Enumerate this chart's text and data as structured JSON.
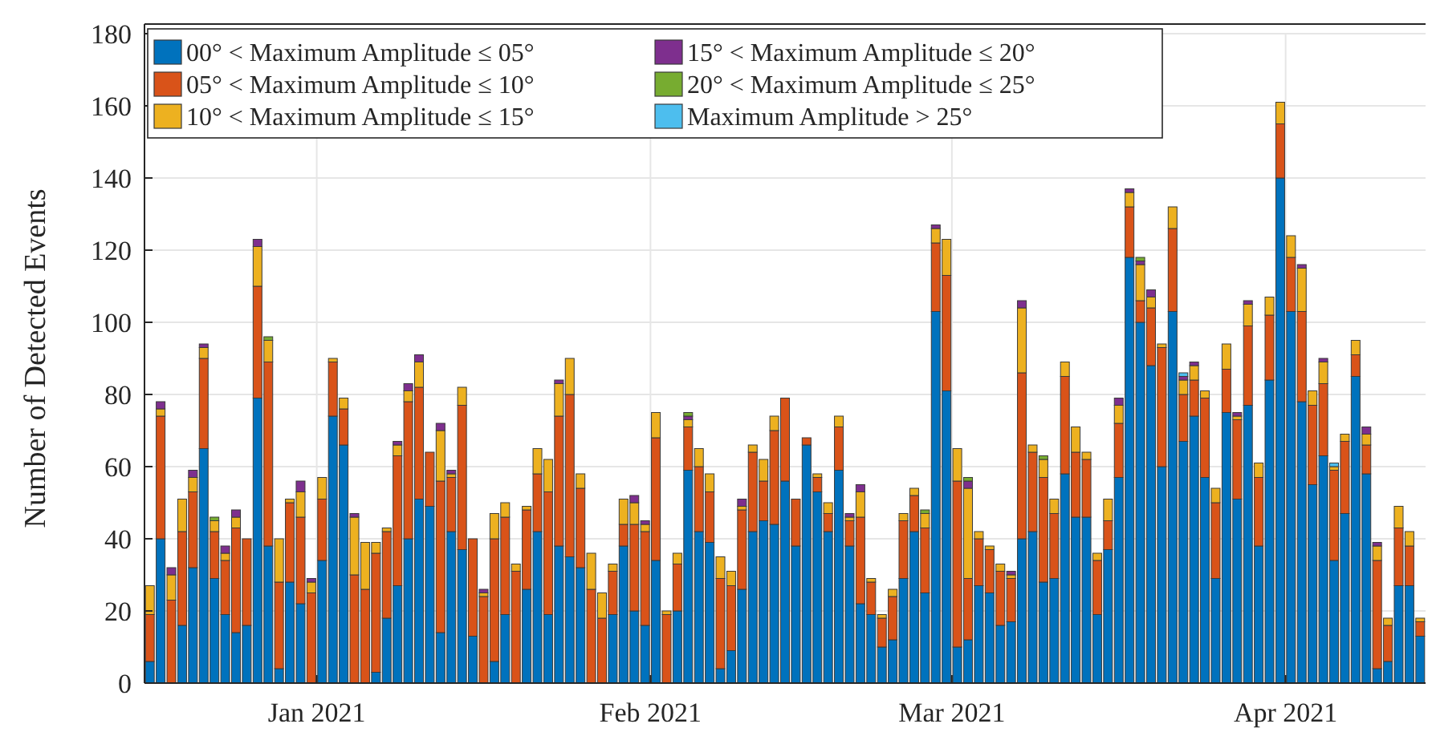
{
  "chart_data": {
    "type": "bar",
    "stacked": true,
    "ylabel": "Number of Detected Events",
    "x": [
      "2020-12-16",
      "2020-12-17",
      "2020-12-18",
      "2020-12-19",
      "2020-12-20",
      "2020-12-21",
      "2020-12-22",
      "2020-12-23",
      "2020-12-24",
      "2020-12-25",
      "2020-12-26",
      "2020-12-27",
      "2020-12-28",
      "2020-12-29",
      "2020-12-30",
      "2020-12-31",
      "2021-01-01",
      "2021-01-02",
      "2021-01-03",
      "2021-01-04",
      "2021-01-05",
      "2021-01-06",
      "2021-01-07",
      "2021-01-08",
      "2021-01-09",
      "2021-01-10",
      "2021-01-11",
      "2021-01-12",
      "2021-01-13",
      "2021-01-14",
      "2021-01-15",
      "2021-01-16",
      "2021-01-17",
      "2021-01-18",
      "2021-01-19",
      "2021-01-20",
      "2021-01-21",
      "2021-01-22",
      "2021-01-23",
      "2021-01-24",
      "2021-01-25",
      "2021-01-26",
      "2021-01-27",
      "2021-01-28",
      "2021-01-29",
      "2021-01-30",
      "2021-01-31",
      "2021-02-01",
      "2021-02-02",
      "2021-02-03",
      "2021-02-04",
      "2021-02-05",
      "2021-02-06",
      "2021-02-07",
      "2021-02-08",
      "2021-02-09",
      "2021-02-10",
      "2021-02-11",
      "2021-02-12",
      "2021-02-13",
      "2021-02-14",
      "2021-02-15",
      "2021-02-16",
      "2021-02-17",
      "2021-02-18",
      "2021-02-19",
      "2021-02-20",
      "2021-02-21",
      "2021-02-22",
      "2021-02-23",
      "2021-02-24",
      "2021-02-25",
      "2021-02-26",
      "2021-02-27",
      "2021-02-28",
      "2021-03-01",
      "2021-03-02",
      "2021-03-03",
      "2021-03-04",
      "2021-03-05",
      "2021-03-06",
      "2021-03-07",
      "2021-03-08",
      "2021-03-09",
      "2021-03-10",
      "2021-03-11",
      "2021-03-12",
      "2021-03-13",
      "2021-03-14",
      "2021-03-15",
      "2021-03-16",
      "2021-03-17",
      "2021-03-18",
      "2021-03-19",
      "2021-03-20",
      "2021-03-21",
      "2021-03-22",
      "2021-03-23",
      "2021-03-24",
      "2021-03-25",
      "2021-03-26",
      "2021-03-27",
      "2021-03-28",
      "2021-03-29",
      "2021-03-30",
      "2021-03-31",
      "2021-04-01",
      "2021-04-02",
      "2021-04-03",
      "2021-04-04",
      "2021-04-05",
      "2021-04-06",
      "2021-04-07",
      "2021-04-08",
      "2021-04-09",
      "2021-04-10",
      "2021-04-11",
      "2021-04-12",
      "2021-04-13"
    ],
    "series": [
      {
        "name": "00° < Maximum Amplitude ≤ 05°",
        "color": "#0072bd",
        "values": [
          6,
          40,
          0,
          16,
          32,
          65,
          29,
          19,
          14,
          16,
          79,
          38,
          4,
          28,
          22,
          0,
          34,
          74,
          66,
          0,
          0,
          3,
          18,
          27,
          40,
          51,
          49,
          14,
          42,
          37,
          13,
          0,
          6,
          19,
          0,
          26,
          42,
          19,
          38,
          35,
          32,
          0,
          0,
          19,
          38,
          20,
          16,
          34,
          0,
          20,
          59,
          42,
          39,
          4,
          9,
          26,
          42,
          45,
          44,
          56,
          38,
          66,
          53,
          42,
          59,
          38,
          22,
          19,
          10,
          12,
          29,
          42,
          25,
          103,
          81,
          10,
          12,
          27,
          25,
          16,
          17,
          40,
          42,
          28,
          29,
          58,
          46,
          46,
          19,
          37,
          57,
          118,
          100,
          88,
          60,
          103,
          67,
          74,
          57,
          29,
          75,
          51,
          77,
          38,
          84,
          140,
          103,
          78,
          55,
          63,
          34,
          47,
          85,
          58,
          4,
          6,
          27,
          27,
          13
        ]
      },
      {
        "name": "05° < Maximum Amplitude ≤ 10°",
        "color": "#d95319",
        "values": [
          13,
          34,
          23,
          26,
          21,
          25,
          13,
          15,
          29,
          24,
          31,
          51,
          24,
          22,
          24,
          25,
          17,
          15,
          10,
          30,
          26,
          33,
          24,
          36,
          38,
          31,
          15,
          42,
          15,
          40,
          27,
          24,
          34,
          27,
          31,
          22,
          16,
          34,
          36,
          45,
          22,
          26,
          18,
          12,
          6,
          24,
          26,
          34,
          19,
          13,
          12,
          18,
          14,
          25,
          18,
          22,
          22,
          11,
          26,
          23,
          13,
          2,
          4,
          5,
          12,
          7,
          24,
          9,
          8,
          12,
          16,
          10,
          18,
          19,
          32,
          46,
          17,
          13,
          12,
          15,
          12,
          46,
          22,
          29,
          18,
          27,
          18,
          16,
          15,
          8,
          15,
          14,
          6,
          16,
          33,
          23,
          13,
          10,
          22,
          21,
          12,
          22,
          22,
          19,
          18,
          15,
          15,
          25,
          22,
          20,
          25,
          20,
          6,
          8,
          30,
          10,
          16,
          11,
          4
        ]
      },
      {
        "name": "10° < Maximum Amplitude ≤ 15°",
        "color": "#edb120",
        "values": [
          8,
          2,
          7,
          9,
          4,
          3,
          3,
          2,
          3,
          0,
          11,
          6,
          12,
          1,
          7,
          3,
          6,
          1,
          3,
          16,
          13,
          3,
          1,
          3,
          3,
          7,
          0,
          14,
          1,
          5,
          0,
          1,
          7,
          4,
          2,
          1,
          7,
          9,
          9,
          10,
          4,
          10,
          7,
          2,
          7,
          6,
          2,
          7,
          1,
          3,
          2,
          5,
          5,
          6,
          4,
          1,
          2,
          6,
          4,
          0,
          0,
          0,
          1,
          3,
          3,
          1,
          7,
          1,
          1,
          2,
          2,
          2,
          4,
          4,
          10,
          9,
          25,
          2,
          1,
          2,
          1,
          18,
          2,
          5,
          4,
          4,
          7,
          2,
          2,
          6,
          5,
          4,
          10,
          3,
          1,
          6,
          4,
          4,
          2,
          4,
          7,
          1,
          6,
          4,
          5,
          6,
          6,
          12,
          4,
          6,
          1,
          2,
          4,
          3,
          4,
          2,
          6,
          4,
          1
        ]
      },
      {
        "name": "15° < Maximum Amplitude ≤ 20°",
        "color": "#7e2f8e",
        "values": [
          0,
          2,
          2,
          0,
          2,
          1,
          0,
          2,
          2,
          0,
          2,
          0,
          0,
          0,
          3,
          1,
          0,
          0,
          0,
          1,
          0,
          0,
          0,
          1,
          2,
          2,
          0,
          2,
          1,
          0,
          0,
          1,
          0,
          0,
          0,
          0,
          0,
          0,
          1,
          0,
          0,
          0,
          0,
          0,
          0,
          2,
          1,
          0,
          0,
          0,
          1,
          0,
          0,
          0,
          0,
          2,
          0,
          0,
          0,
          0,
          0,
          0,
          0,
          0,
          0,
          1,
          2,
          0,
          0,
          0,
          0,
          0,
          0,
          1,
          0,
          0,
          2,
          0,
          0,
          0,
          1,
          2,
          0,
          0,
          0,
          0,
          0,
          0,
          0,
          0,
          2,
          1,
          1,
          2,
          0,
          0,
          1,
          1,
          0,
          0,
          0,
          1,
          1,
          0,
          0,
          0,
          0,
          1,
          0,
          1,
          0,
          0,
          0,
          2,
          1,
          0,
          0,
          0,
          0
        ]
      },
      {
        "name": "20° < Maximum Amplitude ≤ 25°",
        "color": "#77ac30",
        "values": [
          0,
          0,
          0,
          0,
          0,
          0,
          1,
          0,
          0,
          0,
          0,
          1,
          0,
          0,
          0,
          0,
          0,
          0,
          0,
          0,
          0,
          0,
          0,
          0,
          0,
          0,
          0,
          0,
          0,
          0,
          0,
          0,
          0,
          0,
          0,
          0,
          0,
          0,
          0,
          0,
          0,
          0,
          0,
          0,
          0,
          0,
          0,
          0,
          0,
          0,
          1,
          0,
          0,
          0,
          0,
          0,
          0,
          0,
          0,
          0,
          0,
          0,
          0,
          0,
          0,
          0,
          0,
          0,
          0,
          0,
          0,
          0,
          1,
          0,
          0,
          0,
          1,
          0,
          0,
          0,
          0,
          0,
          0,
          1,
          0,
          0,
          0,
          0,
          0,
          0,
          0,
          0,
          1,
          0,
          0,
          0,
          0,
          0,
          0,
          0,
          0,
          0,
          0,
          0,
          0,
          0,
          0,
          0,
          0,
          0,
          0,
          0,
          0,
          0,
          0,
          0,
          0,
          0,
          0
        ]
      },
      {
        "name": "Maximum Amplitude > 25°",
        "color": "#4dbeee",
        "values": [
          0,
          0,
          0,
          0,
          0,
          0,
          0,
          0,
          0,
          0,
          0,
          0,
          0,
          0,
          0,
          0,
          0,
          0,
          0,
          0,
          0,
          0,
          0,
          0,
          0,
          0,
          0,
          0,
          0,
          0,
          0,
          0,
          0,
          0,
          0,
          0,
          0,
          0,
          0,
          0,
          0,
          0,
          0,
          0,
          0,
          0,
          0,
          0,
          0,
          0,
          0,
          0,
          0,
          0,
          0,
          0,
          0,
          0,
          0,
          0,
          0,
          0,
          0,
          0,
          0,
          0,
          0,
          0,
          0,
          0,
          0,
          0,
          0,
          0,
          0,
          0,
          0,
          0,
          0,
          0,
          0,
          0,
          0,
          0,
          0,
          0,
          0,
          0,
          0,
          0,
          0,
          0,
          0,
          0,
          0,
          0,
          1,
          0,
          0,
          0,
          0,
          0,
          0,
          0,
          0,
          0,
          0,
          0,
          0,
          0,
          1,
          0,
          0,
          0,
          0,
          0,
          0,
          0,
          0
        ]
      }
    ],
    "xlim": [
      "2020-12-16",
      "2021-04-14"
    ],
    "xticks": [
      {
        "value": "2021-01-01",
        "label": "Jan 2021"
      },
      {
        "value": "2021-02-01",
        "label": "Feb 2021"
      },
      {
        "value": "2021-03-01",
        "label": "Mar 2021"
      },
      {
        "value": "2021-04-01",
        "label": "Apr 2021"
      }
    ],
    "ylim": [
      0,
      180
    ],
    "yticks": [
      0,
      20,
      40,
      60,
      80,
      100,
      120,
      140,
      160,
      180
    ],
    "grid": true,
    "legend": "top left"
  }
}
